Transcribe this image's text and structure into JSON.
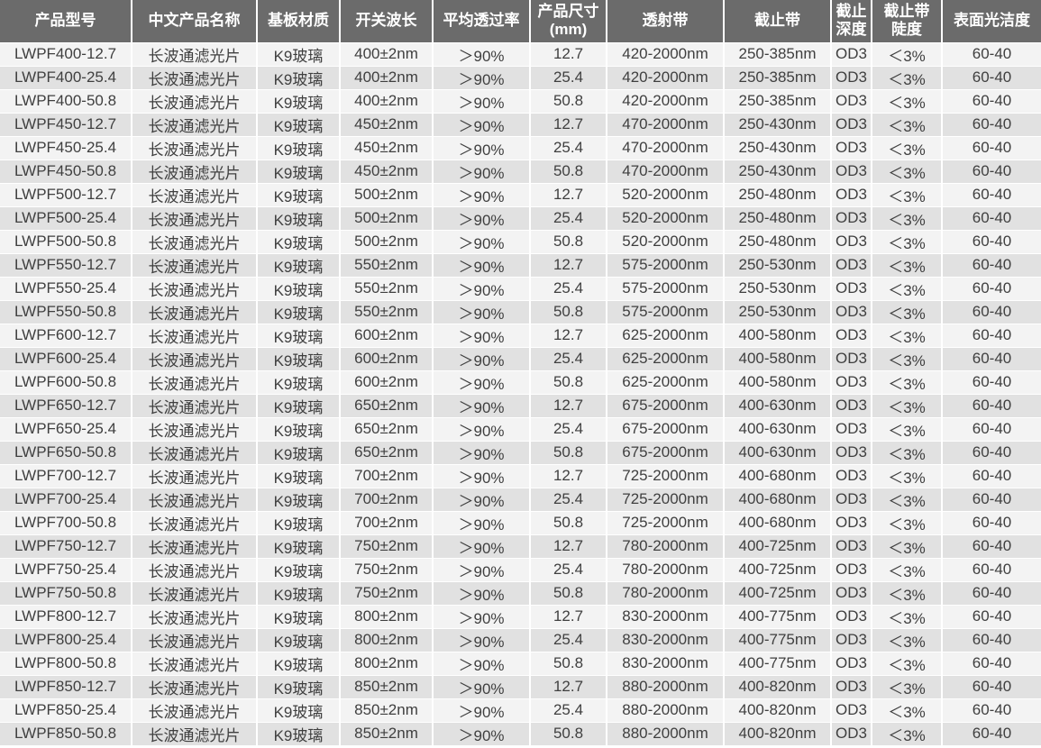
{
  "colors": {
    "header_bg": "#6b6b6b",
    "header_text": "#ffffff",
    "row_light": "#f3f3f3",
    "row_dark": "#e1e1e1",
    "body_text": "#3f3f3f",
    "separator": "#ffffff"
  },
  "table": {
    "headers": [
      {
        "key": "product-model",
        "lines": [
          "产品型号"
        ]
      },
      {
        "key": "product-name-cn",
        "lines": [
          "中文产品名称"
        ]
      },
      {
        "key": "substrate-material",
        "lines": [
          "基板材质"
        ]
      },
      {
        "key": "switch-wavelength",
        "lines": [
          "开关波长"
        ]
      },
      {
        "key": "avg-transmittance",
        "lines": [
          "平均透过率"
        ]
      },
      {
        "key": "product-size-mm",
        "lines": [
          "产品尺寸",
          "(mm)"
        ]
      },
      {
        "key": "transmission-band",
        "lines": [
          "透射带"
        ]
      },
      {
        "key": "cutoff-band",
        "lines": [
          "截止带"
        ]
      },
      {
        "key": "cutoff-depth",
        "lines": [
          "截止",
          "深度"
        ]
      },
      {
        "key": "cutoff-steepness",
        "lines": [
          "截止带",
          "陡度"
        ]
      },
      {
        "key": "surface-quality",
        "lines": [
          "表面光洁度"
        ]
      }
    ],
    "rows": [
      [
        "LWPF400-12.7",
        "长波通滤光片",
        "K9玻璃",
        "400±2nm",
        "＞90%",
        "12.7",
        "420-2000nm",
        "250-385nm",
        "OD3",
        "＜3%",
        "60-40"
      ],
      [
        "LWPF400-25.4",
        "长波通滤光片",
        "K9玻璃",
        "400±2nm",
        "＞90%",
        "25.4",
        "420-2000nm",
        "250-385nm",
        "OD3",
        "＜3%",
        "60-40"
      ],
      [
        "LWPF400-50.8",
        "长波通滤光片",
        "K9玻璃",
        "400±2nm",
        "＞90%",
        "50.8",
        "420-2000nm",
        "250-385nm",
        "OD3",
        "＜3%",
        "60-40"
      ],
      [
        "LWPF450-12.7",
        "长波通滤光片",
        "K9玻璃",
        "450±2nm",
        "＞90%",
        "12.7",
        "470-2000nm",
        "250-430nm",
        "OD3",
        "＜3%",
        "60-40"
      ],
      [
        "LWPF450-25.4",
        "长波通滤光片",
        "K9玻璃",
        "450±2nm",
        "＞90%",
        "25.4",
        "470-2000nm",
        "250-430nm",
        "OD3",
        "＜3%",
        "60-40"
      ],
      [
        "LWPF450-50.8",
        "长波通滤光片",
        "K9玻璃",
        "450±2nm",
        "＞90%",
        "50.8",
        "470-2000nm",
        "250-430nm",
        "OD3",
        "＜3%",
        "60-40"
      ],
      [
        "LWPF500-12.7",
        "长波通滤光片",
        "K9玻璃",
        "500±2nm",
        "＞90%",
        "12.7",
        "520-2000nm",
        "250-480nm",
        "OD3",
        "＜3%",
        "60-40"
      ],
      [
        "LWPF500-25.4",
        "长波通滤光片",
        "K9玻璃",
        "500±2nm",
        "＞90%",
        "25.4",
        "520-2000nm",
        "250-480nm",
        "OD3",
        "＜3%",
        "60-40"
      ],
      [
        "LWPF500-50.8",
        "长波通滤光片",
        "K9玻璃",
        "500±2nm",
        "＞90%",
        "50.8",
        "520-2000nm",
        "250-480nm",
        "OD3",
        "＜3%",
        "60-40"
      ],
      [
        "LWPF550-12.7",
        "长波通滤光片",
        "K9玻璃",
        "550±2nm",
        "＞90%",
        "12.7",
        "575-2000nm",
        "250-530nm",
        "OD3",
        "＜3%",
        "60-40"
      ],
      [
        "LWPF550-25.4",
        "长波通滤光片",
        "K9玻璃",
        "550±2nm",
        "＞90%",
        "25.4",
        "575-2000nm",
        "250-530nm",
        "OD3",
        "＜3%",
        "60-40"
      ],
      [
        "LWPF550-50.8",
        "长波通滤光片",
        "K9玻璃",
        "550±2nm",
        "＞90%",
        "50.8",
        "575-2000nm",
        "250-530nm",
        "OD3",
        "＜3%",
        "60-40"
      ],
      [
        "LWPF600-12.7",
        "长波通滤光片",
        "K9玻璃",
        "600±2nm",
        "＞90%",
        "12.7",
        "625-2000nm",
        "400-580nm",
        "OD3",
        "＜3%",
        "60-40"
      ],
      [
        "LWPF600-25.4",
        "长波通滤光片",
        "K9玻璃",
        "600±2nm",
        "＞90%",
        "25.4",
        "625-2000nm",
        "400-580nm",
        "OD3",
        "＜3%",
        "60-40"
      ],
      [
        "LWPF600-50.8",
        "长波通滤光片",
        "K9玻璃",
        "600±2nm",
        "＞90%",
        "50.8",
        "625-2000nm",
        "400-580nm",
        "OD3",
        "＜3%",
        "60-40"
      ],
      [
        "LWPF650-12.7",
        "长波通滤光片",
        "K9玻璃",
        "650±2nm",
        "＞90%",
        "12.7",
        "675-2000nm",
        "400-630nm",
        "OD3",
        "＜3%",
        "60-40"
      ],
      [
        "LWPF650-25.4",
        "长波通滤光片",
        "K9玻璃",
        "650±2nm",
        "＞90%",
        "25.4",
        "675-2000nm",
        "400-630nm",
        "OD3",
        "＜3%",
        "60-40"
      ],
      [
        "LWPF650-50.8",
        "长波通滤光片",
        "K9玻璃",
        "650±2nm",
        "＞90%",
        "50.8",
        "675-2000nm",
        "400-630nm",
        "OD3",
        "＜3%",
        "60-40"
      ],
      [
        "LWPF700-12.7",
        "长波通滤光片",
        "K9玻璃",
        "700±2nm",
        "＞90%",
        "12.7",
        "725-2000nm",
        "400-680nm",
        "OD3",
        "＜3%",
        "60-40"
      ],
      [
        "LWPF700-25.4",
        "长波通滤光片",
        "K9玻璃",
        "700±2nm",
        "＞90%",
        "25.4",
        "725-2000nm",
        "400-680nm",
        "OD3",
        "＜3%",
        "60-40"
      ],
      [
        "LWPF700-50.8",
        "长波通滤光片",
        "K9玻璃",
        "700±2nm",
        "＞90%",
        "50.8",
        "725-2000nm",
        "400-680nm",
        "OD3",
        "＜3%",
        "60-40"
      ],
      [
        "LWPF750-12.7",
        "长波通滤光片",
        "K9玻璃",
        "750±2nm",
        "＞90%",
        "12.7",
        "780-2000nm",
        "400-725nm",
        "OD3",
        "＜3%",
        "60-40"
      ],
      [
        "LWPF750-25.4",
        "长波通滤光片",
        "K9玻璃",
        "750±2nm",
        "＞90%",
        "25.4",
        "780-2000nm",
        "400-725nm",
        "OD3",
        "＜3%",
        "60-40"
      ],
      [
        "LWPF750-50.8",
        "长波通滤光片",
        "K9玻璃",
        "750±2nm",
        "＞90%",
        "50.8",
        "780-2000nm",
        "400-725nm",
        "OD3",
        "＜3%",
        "60-40"
      ],
      [
        "LWPF800-12.7",
        "长波通滤光片",
        "K9玻璃",
        "800±2nm",
        "＞90%",
        "12.7",
        "830-2000nm",
        "400-775nm",
        "OD3",
        "＜3%",
        "60-40"
      ],
      [
        "LWPF800-25.4",
        "长波通滤光片",
        "K9玻璃",
        "800±2nm",
        "＞90%",
        "25.4",
        "830-2000nm",
        "400-775nm",
        "OD3",
        "＜3%",
        "60-40"
      ],
      [
        "LWPF800-50.8",
        "长波通滤光片",
        "K9玻璃",
        "800±2nm",
        "＞90%",
        "50.8",
        "830-2000nm",
        "400-775nm",
        "OD3",
        "＜3%",
        "60-40"
      ],
      [
        "LWPF850-12.7",
        "长波通滤光片",
        "K9玻璃",
        "850±2nm",
        "＞90%",
        "12.7",
        "880-2000nm",
        "400-820nm",
        "OD3",
        "＜3%",
        "60-40"
      ],
      [
        "LWPF850-25.4",
        "长波通滤光片",
        "K9玻璃",
        "850±2nm",
        "＞90%",
        "25.4",
        "880-2000nm",
        "400-820nm",
        "OD3",
        "＜3%",
        "60-40"
      ],
      [
        "LWPF850-50.8",
        "长波通滤光片",
        "K9玻璃",
        "850±2nm",
        "＞90%",
        "50.8",
        "880-2000nm",
        "400-820nm",
        "OD3",
        "＜3%",
        "60-40"
      ]
    ]
  }
}
